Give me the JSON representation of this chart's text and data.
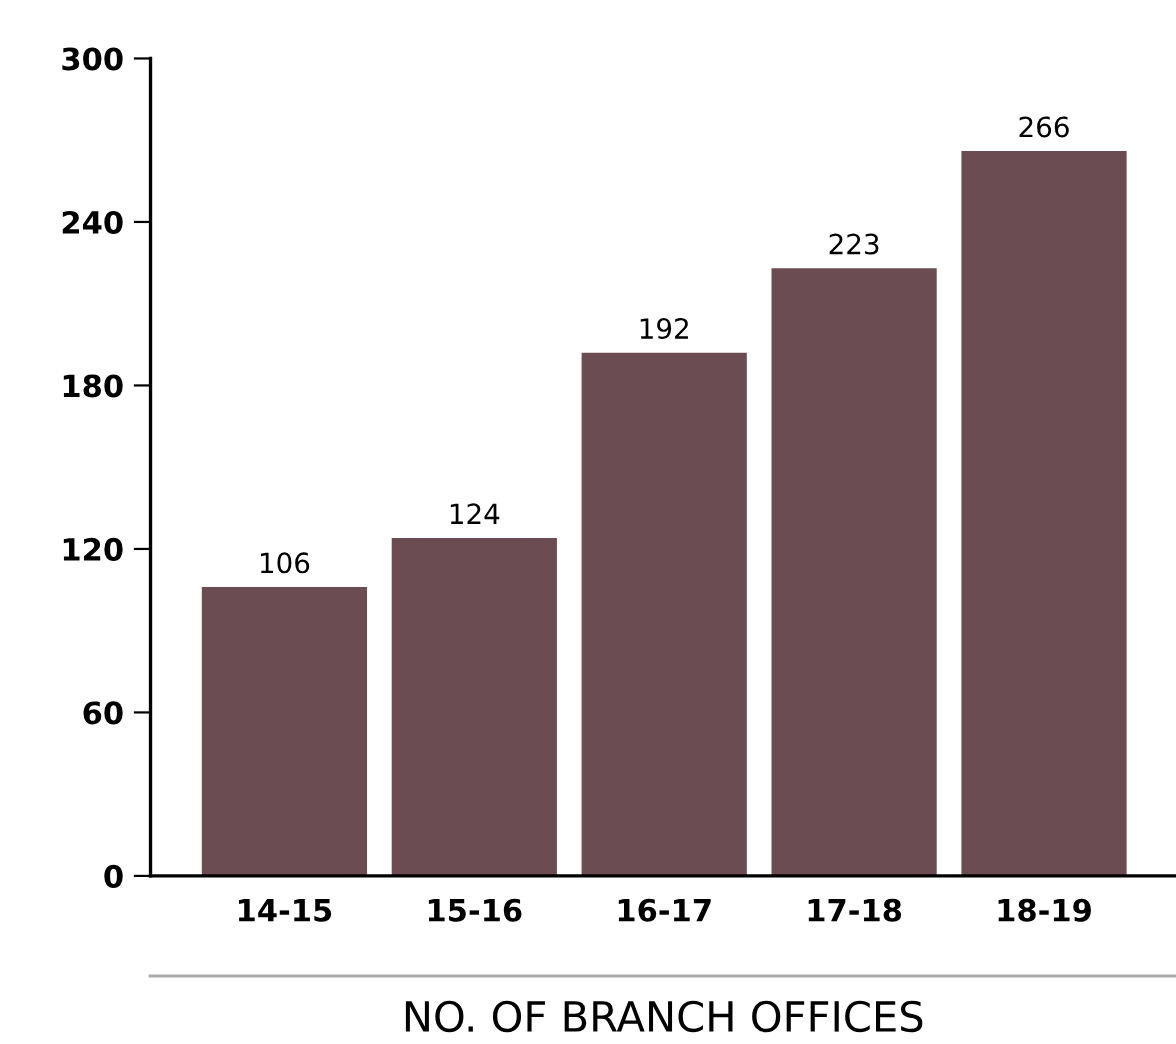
{
  "chart_data": {
    "type": "bar",
    "xlabel": "NO. OF BRANCH OFFICES",
    "categories": [
      "14-15",
      "15-16",
      "16-17",
      "17-18",
      "18-19"
    ],
    "values": [
      106,
      124,
      192,
      223,
      266
    ],
    "color": "#6b4c52",
    "ylim": [
      0,
      300
    ],
    "yticks": [
      0,
      60,
      120,
      180,
      240,
      300
    ],
    "grid": false,
    "data_labels": true
  }
}
